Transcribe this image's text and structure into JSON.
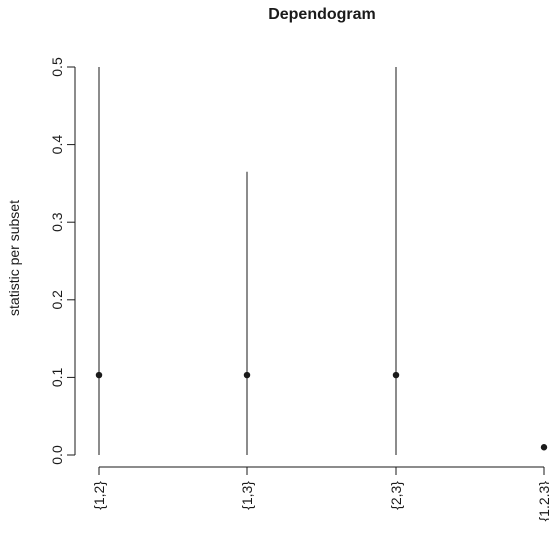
{
  "chart_data": {
    "type": "scatter",
    "title": "Dependogram",
    "ylabel": "statistic per subset",
    "xlabel": "",
    "ylim": [
      0,
      0.5
    ],
    "yticks": [
      "0.0",
      "0.1",
      "0.2",
      "0.3",
      "0.4",
      "0.5"
    ],
    "categories": [
      "{1,2}",
      "{1,3}",
      "{2,3}",
      "{1,2,3}"
    ],
    "statistic": [
      0.103,
      0.103,
      0.103,
      0.01
    ],
    "upper": [
      0.5,
      0.365,
      0.5,
      0.01
    ],
    "lower": [
      0,
      0,
      0,
      0.007
    ],
    "grid": false,
    "legend": "none",
    "colors": {
      "ink": "#1a1a1a"
    }
  }
}
